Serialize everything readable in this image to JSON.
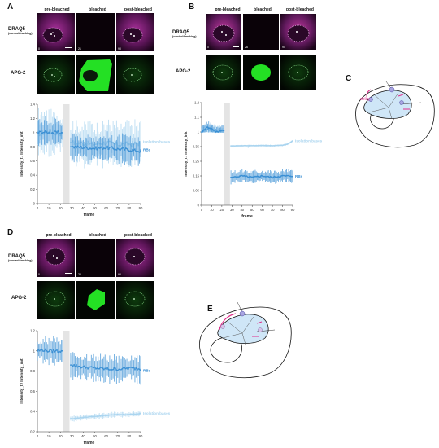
{
  "panels": {
    "a": {
      "label": "A",
      "columns": [
        "pre-bleached",
        "bleached",
        "post-bleached"
      ],
      "row1_label": "DRAQ5",
      "row1_sub": "(control/tracking)",
      "row2_label": "APG-2",
      "frames": [
        "0",
        "21",
        "90"
      ]
    },
    "b": {
      "label": "B",
      "columns": [
        "pre-bleached",
        "bleached",
        "post-bleached"
      ],
      "row1_label": "DRAQ5",
      "row1_sub": "(control/tracking)",
      "row2_label": "APG-2",
      "frames": [
        "0",
        "26",
        "90"
      ]
    },
    "c": {
      "label": "C",
      "annotation": "delay"
    },
    "d": {
      "label": "D",
      "columns": [
        "pre-bleached",
        "bleached",
        "post-bleached"
      ],
      "row1_label": "DRAQ5",
      "row1_sub": "(control/tracking)",
      "row2_label": "APG-2",
      "frames": [
        "0",
        "20",
        "90"
      ]
    },
    "e": {
      "label": "E"
    }
  },
  "colors": {
    "light_series": "#a9d4ef",
    "dark_series": "#3a8fd4",
    "magenta": "#e0308c",
    "bleach_band": "#d9d9d9"
  },
  "chart_data": [
    {
      "type": "line",
      "panel": "A",
      "xlabel": "frame",
      "ylabel": "Intensity_t / Intensity_init",
      "xlim": [
        0,
        90
      ],
      "ylim": [
        0,
        1.4
      ],
      "xticks": [
        "0",
        "10",
        "20",
        "30",
        "40",
        "50",
        "60",
        "70",
        "80",
        "90"
      ],
      "yticks": [
        "0",
        "0.2",
        "0.4",
        "0.6",
        "0.8",
        "1",
        "1.2",
        "1.4"
      ],
      "bleach_window": [
        22,
        28
      ],
      "series": [
        {
          "name": "Isolation bases",
          "style": "light",
          "x": [
            0,
            5,
            10,
            15,
            20,
            22,
            28,
            30,
            40,
            50,
            60,
            70,
            80,
            90
          ],
          "y": [
            0.98,
            1.0,
            1.02,
            1.0,
            0.99,
            null,
            null,
            0.86,
            0.85,
            0.84,
            0.86,
            0.83,
            0.84,
            0.85
          ],
          "err": 0.28
        },
        {
          "name": "RBs",
          "style": "dark",
          "x": [
            0,
            5,
            10,
            15,
            20,
            22,
            28,
            30,
            40,
            50,
            60,
            70,
            80,
            90
          ],
          "y": [
            1.0,
            1.01,
            1.0,
            1.0,
            1.0,
            null,
            null,
            0.8,
            0.79,
            0.78,
            0.79,
            0.77,
            0.76,
            0.74
          ],
          "err": 0.18
        }
      ]
    },
    {
      "type": "line",
      "panel": "B",
      "xlabel": "frame",
      "ylabel": "Intensity_t / Intensity_init",
      "xlim": [
        0,
        90
      ],
      "ylim": [
        0,
        1.2
      ],
      "xticks": [
        "0",
        "10",
        "20",
        "30",
        "40",
        "50",
        "60",
        "70",
        "80",
        "90"
      ],
      "yticks": [
        "0",
        "0.05",
        "0.15",
        "0.25",
        "0.35",
        "1",
        "1.1",
        "1.2"
      ],
      "bleach_window": [
        22,
        28
      ],
      "series": [
        {
          "name": "Isolation bases",
          "style": "light",
          "x": [
            0,
            5,
            10,
            15,
            20,
            22,
            28,
            30,
            40,
            50,
            60,
            70,
            80,
            85,
            90
          ],
          "y": [
            1.0,
            1.02,
            1.01,
            1.0,
            1.0,
            null,
            null,
            0.38,
            0.39,
            0.39,
            0.4,
            0.39,
            0.41,
            0.46,
            0.6
          ],
          "err": 0.04
        },
        {
          "name": "RBs",
          "style": "dark",
          "x": [
            0,
            5,
            10,
            15,
            20,
            22,
            28,
            30,
            40,
            50,
            60,
            70,
            80,
            90
          ],
          "y": [
            1.0,
            1.03,
            1.02,
            1.0,
            1.01,
            null,
            null,
            0.14,
            0.15,
            0.14,
            0.15,
            0.14,
            0.15,
            0.15
          ],
          "err": 0.04
        }
      ]
    },
    {
      "type": "line",
      "panel": "D",
      "xlabel": "frame",
      "ylabel": "Intensity_t / Intensity_init",
      "xlim": [
        0,
        90
      ],
      "ylim": [
        0.2,
        1.2
      ],
      "xticks": [
        "0",
        "10",
        "20",
        "30",
        "40",
        "50",
        "60",
        "70",
        "80",
        "90"
      ],
      "yticks": [
        "0.2",
        "0.4",
        "0.6",
        "0.8",
        "1",
        "1.2"
      ],
      "bleach_window": [
        22,
        28
      ],
      "series": [
        {
          "name": "RBs",
          "style": "dark",
          "x": [
            0,
            5,
            10,
            15,
            20,
            22,
            28,
            30,
            40,
            50,
            60,
            70,
            80,
            90
          ],
          "y": [
            1.0,
            1.01,
            1.0,
            1.0,
            1.0,
            null,
            null,
            0.86,
            0.84,
            0.83,
            0.82,
            0.82,
            0.83,
            0.82
          ],
          "err": 0.12
        },
        {
          "name": "Isolation bases",
          "style": "light",
          "x": [
            0,
            5,
            10,
            15,
            20,
            22,
            28,
            30,
            40,
            50,
            60,
            70,
            80,
            90
          ],
          "y": [
            null,
            null,
            null,
            null,
            null,
            null,
            null,
            0.33,
            0.34,
            0.35,
            0.36,
            0.37,
            0.37,
            0.38
          ],
          "err": 0.025
        }
      ]
    }
  ]
}
